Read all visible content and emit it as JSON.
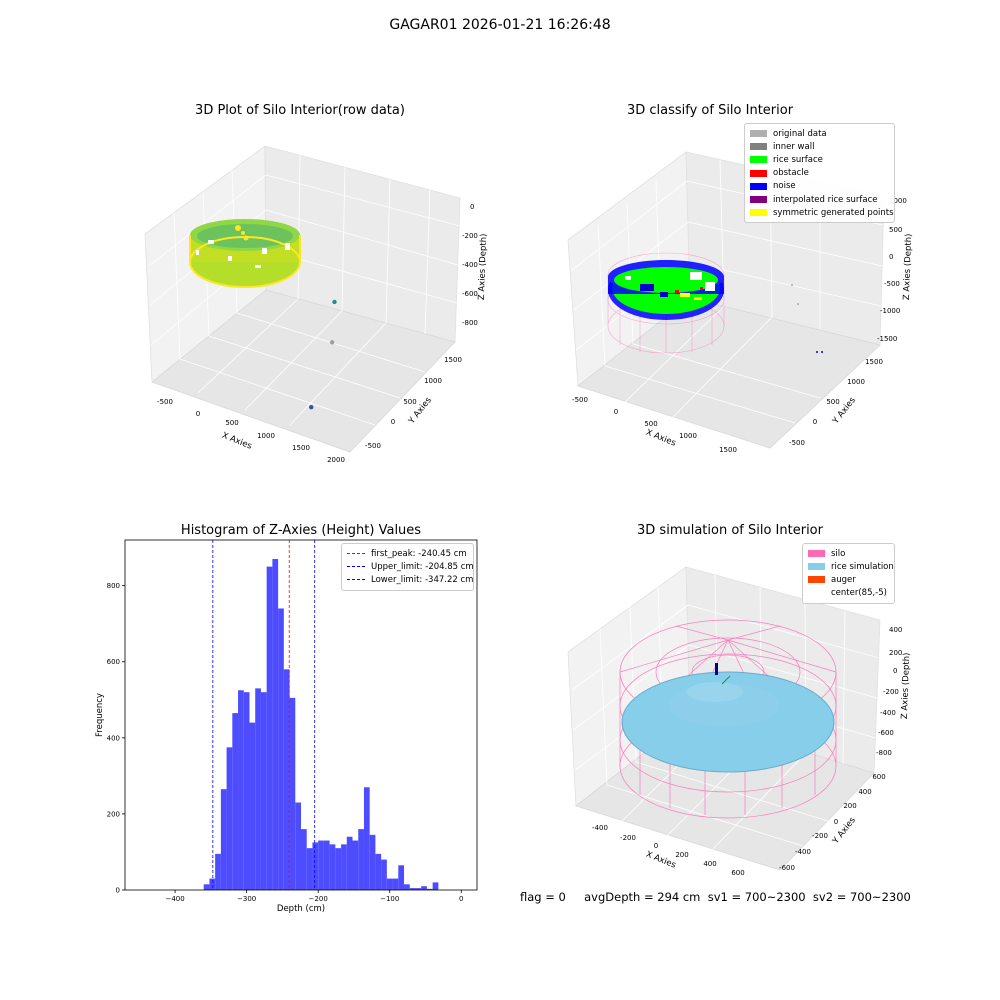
{
  "suptitle": "GAGAR01 2026-01-21 16:26:48",
  "chart_data": [
    {
      "id": "raw",
      "type": "scatter",
      "title": "3D Plot of Silo Interior(row data)",
      "xlabel": "X Axies",
      "ylabel": "Y Axies",
      "zlabel": "Z Axies (Depth)",
      "x_ticks": [
        "-500",
        "0",
        "500",
        "1000",
        "1500",
        "2000"
      ],
      "y_ticks": [
        "-500",
        "0",
        "500",
        "1000",
        "1500"
      ],
      "z_ticks": [
        "0",
        "-200",
        "-400",
        "-600",
        "-800"
      ],
      "colormap": [
        "#440154",
        "#3b528b",
        "#21918c",
        "#5ec962",
        "#fde725"
      ],
      "outliers": [
        {
          "x": 1300,
          "y": 650,
          "z": -520,
          "color": "#21918c"
        },
        {
          "x": 1600,
          "y": 330,
          "z": -640,
          "color": "#9aa0a6"
        },
        {
          "x": 1850,
          "y": -200,
          "z": -900,
          "color": "#3b528b"
        }
      ]
    },
    {
      "id": "classify",
      "type": "scatter",
      "title": "3D classify of Silo Interior",
      "xlabel": "X Axies",
      "ylabel": "Y Axies",
      "zlabel": "Z Axies (Depth)",
      "x_ticks": [
        "-500",
        "0",
        "500",
        "1000",
        "1500"
      ],
      "y_ticks": [
        "-500",
        "0",
        "500",
        "1000",
        "1500"
      ],
      "z_ticks": [
        "1000",
        "500",
        "0",
        "-500",
        "-1000",
        "-1500"
      ],
      "legend": [
        {
          "label": "original data",
          "color": "#b0b0b0"
        },
        {
          "label": "inner wall",
          "color": "#808080"
        },
        {
          "label": "rice surface",
          "color": "#00ff00"
        },
        {
          "label": "obstacle",
          "color": "#ff0000"
        },
        {
          "label": "noise",
          "color": "#0000ff"
        },
        {
          "label": "interpolated rice surface",
          "color": "#800080"
        },
        {
          "label": "symmetric generated points",
          "color": "#ffff00"
        }
      ]
    },
    {
      "id": "hist",
      "type": "bar",
      "title": "Histogram of Z-Axies (Height) Values",
      "xlabel": "Depth (cm)",
      "ylabel": "Frequency",
      "xlim": [
        -470,
        22
      ],
      "ylim": [
        0,
        920
      ],
      "x_ticks": [
        -400,
        -300,
        -200,
        -100,
        0
      ],
      "y_ticks": [
        0,
        200,
        400,
        600,
        800
      ],
      "bin_start": -360,
      "bin_width": 8,
      "values": [
        15,
        30,
        95,
        265,
        375,
        465,
        525,
        520,
        440,
        530,
        520,
        850,
        870,
        740,
        580,
        505,
        230,
        160,
        110,
        125,
        130,
        130,
        120,
        110,
        120,
        140,
        130,
        160,
        270,
        145,
        95,
        80,
        30,
        30,
        65,
        15,
        5,
        5,
        10,
        3,
        20
      ],
      "bar_color": "#4d4dff",
      "vlines": [
        {
          "x": -240.45,
          "color": "#ff0000",
          "label": "first_peak: -240.45 cm"
        },
        {
          "x": -204.85,
          "color": "#0000ff",
          "label": "Upper_limit: -204.85 cm"
        },
        {
          "x": -347.22,
          "color": "#0000ff",
          "label": "Lower_limit: -347.22 cm"
        }
      ]
    },
    {
      "id": "sim",
      "type": "scatter",
      "title": "3D simulation of Silo Interior",
      "xlabel": "X Axies",
      "ylabel": "Y Axies",
      "zlabel": "Z Axies (Depth)",
      "x_ticks": [
        "-400",
        "-200",
        "0",
        "200",
        "400",
        "600"
      ],
      "y_ticks": [
        "-600",
        "-400",
        "-200",
        "0",
        "200",
        "400",
        "600"
      ],
      "z_ticks": [
        "400",
        "200",
        "0",
        "-200",
        "-400",
        "-600",
        "-800"
      ],
      "legend": [
        {
          "label": "silo",
          "color": "#ff69b4"
        },
        {
          "label": "rice simulation",
          "color": "#87ceeb"
        },
        {
          "label": "auger",
          "color": "#ff4500"
        },
        {
          "label": "center(85,-5)",
          "color": ""
        }
      ]
    }
  ],
  "status": {
    "text": "flag = 0     avgDepth = 294 cm  sv1 = 700~2300  sv2 = 700~2300"
  }
}
